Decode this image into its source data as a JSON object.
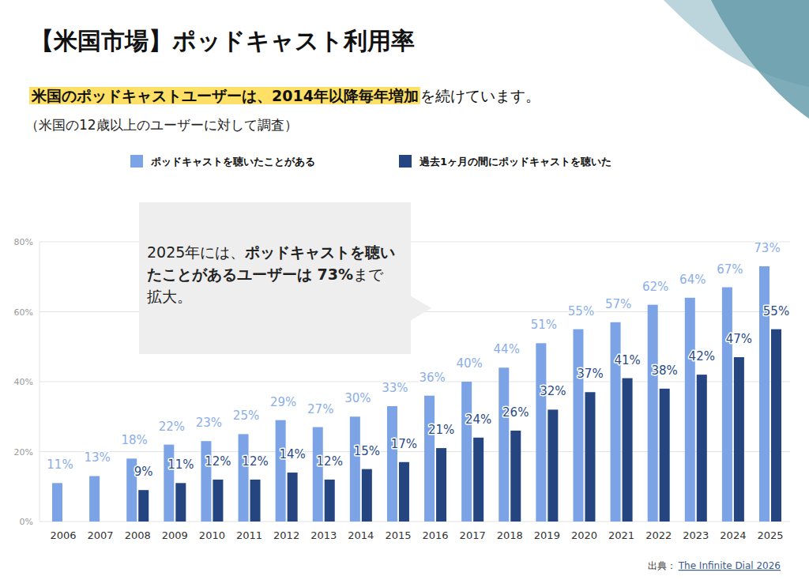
{
  "chart_data": {
    "type": "bar",
    "title": "【米国市場】ポッドキャスト利用率",
    "subtitle": [
      "米国のポッドキャストユーザーは、2014年以降毎年増加",
      "を続けています。"
    ],
    "note": "（米国の12歳以上のユーザーに対して調査）",
    "annotation": [
      "2025年には、",
      "ポッドキャストを聴いたことがあるユーザーは 73%",
      "まで拡大。"
    ],
    "source": [
      "出典：",
      "The Infinite Dial 2026"
    ],
    "categories": [
      "2006",
      "2007",
      "2008",
      "2009",
      "2010",
      "2011",
      "2012",
      "2013",
      "2014",
      "2015",
      "2016",
      "2017",
      "2018",
      "2019",
      "2020",
      "2021",
      "2022",
      "2023",
      "2024",
      "2025"
    ],
    "series": [
      {
        "name": "ポッドキャストを聴いたことがある",
        "color": "#7ba3e6",
        "values": [
          11,
          13,
          18,
          22,
          23,
          25,
          29,
          27,
          30,
          33,
          36,
          40,
          44,
          51,
          55,
          57,
          62,
          64,
          67,
          73
        ],
        "value_labels": [
          "11%",
          "13%",
          "18%",
          "22%",
          "23%",
          "25%",
          "29%",
          "27%",
          "30%",
          "33%",
          "36%",
          "40%",
          "44%",
          "51%",
          "55%",
          "57%",
          "62%",
          "64%",
          "67%",
          "73%"
        ]
      },
      {
        "name": "過去1ヶ月の間にポッドキャストを聴いた",
        "color": "#24457f",
        "values": [
          null,
          null,
          9,
          11,
          12,
          12,
          14,
          12,
          15,
          17,
          21,
          24,
          26,
          32,
          37,
          41,
          38,
          42,
          47,
          55
        ],
        "value_labels": [
          null,
          null,
          "9%",
          "11%",
          "12%",
          "12%",
          "14%",
          "12%",
          "15%",
          "17%",
          "21%",
          "24%",
          "26%",
          "32%",
          "37%",
          "41%",
          "38%",
          "42%",
          "47%",
          "55%"
        ]
      }
    ],
    "ylim": [
      0,
      80
    ],
    "yticks": [
      {
        "value": 0,
        "label": "0%"
      },
      {
        "value": 20,
        "label": "20%"
      },
      {
        "value": 40,
        "label": "40%"
      },
      {
        "value": 60,
        "label": "60%"
      },
      {
        "value": 80,
        "label": "80%"
      }
    ],
    "grid": true,
    "legend": "top",
    "data_labels": true
  }
}
